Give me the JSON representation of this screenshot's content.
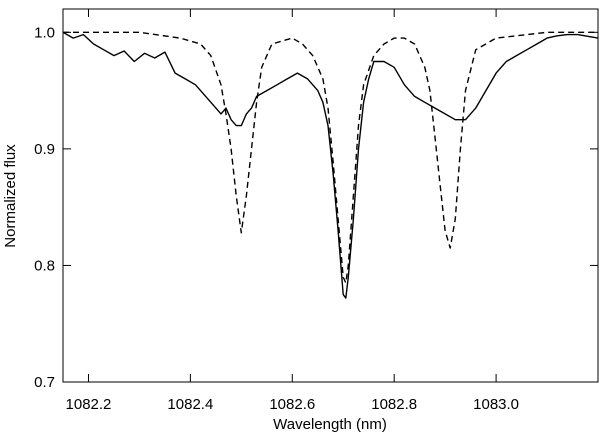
{
  "chart_data": {
    "type": "line",
    "xlabel": "Wavelength (nm)",
    "ylabel": "Normalized flux",
    "xlim": [
      1082.15,
      1083.2
    ],
    "ylim": [
      0.7,
      1.02
    ],
    "x_ticks": [
      1082.2,
      1082.4,
      1082.6,
      1082.8,
      1083.0
    ],
    "x_tick_labels": [
      "1082.2",
      "1082.4",
      "1082.6",
      "1082.8",
      "1083.0"
    ],
    "y_ticks": [
      0.7,
      0.8,
      0.9,
      1.0
    ],
    "y_tick_labels": [
      "0.7",
      "0.8",
      "0.9",
      "1.0"
    ],
    "grid": false,
    "legend": "none",
    "series": [
      {
        "style": "solid",
        "color": "#000000",
        "x": [
          1082.15,
          1082.17,
          1082.19,
          1082.21,
          1082.23,
          1082.25,
          1082.27,
          1082.29,
          1082.31,
          1082.33,
          1082.35,
          1082.37,
          1082.39,
          1082.41,
          1082.43,
          1082.45,
          1082.46,
          1082.47,
          1082.48,
          1082.49,
          1082.5,
          1082.51,
          1082.52,
          1082.53,
          1082.55,
          1082.57,
          1082.59,
          1082.61,
          1082.63,
          1082.65,
          1082.66,
          1082.67,
          1082.68,
          1082.69,
          1082.7,
          1082.705,
          1082.71,
          1082.72,
          1082.73,
          1082.74,
          1082.75,
          1082.76,
          1082.78,
          1082.8,
          1082.82,
          1082.84,
          1082.86,
          1082.88,
          1082.9,
          1082.92,
          1082.94,
          1082.96,
          1082.98,
          1083.0,
          1083.02,
          1083.04,
          1083.06,
          1083.08,
          1083.1,
          1083.12,
          1083.14,
          1083.16,
          1083.2
        ],
        "y": [
          1.0,
          0.995,
          0.998,
          0.99,
          0.985,
          0.98,
          0.984,
          0.975,
          0.982,
          0.978,
          0.983,
          0.965,
          0.96,
          0.955,
          0.945,
          0.935,
          0.93,
          0.935,
          0.925,
          0.92,
          0.92,
          0.93,
          0.935,
          0.945,
          0.95,
          0.955,
          0.96,
          0.965,
          0.96,
          0.95,
          0.94,
          0.92,
          0.88,
          0.83,
          0.775,
          0.772,
          0.79,
          0.84,
          0.9,
          0.94,
          0.96,
          0.975,
          0.975,
          0.97,
          0.955,
          0.945,
          0.94,
          0.935,
          0.93,
          0.925,
          0.925,
          0.935,
          0.95,
          0.965,
          0.975,
          0.98,
          0.985,
          0.99,
          0.995,
          0.997,
          0.998,
          0.998,
          0.995
        ]
      },
      {
        "style": "dashed",
        "color": "#000000",
        "x": [
          1082.15,
          1082.3,
          1082.38,
          1082.42,
          1082.44,
          1082.46,
          1082.47,
          1082.48,
          1082.49,
          1082.5,
          1082.51,
          1082.52,
          1082.53,
          1082.54,
          1082.56,
          1082.6,
          1082.62,
          1082.64,
          1082.66,
          1082.67,
          1082.68,
          1082.69,
          1082.7,
          1082.705,
          1082.71,
          1082.72,
          1082.73,
          1082.74,
          1082.76,
          1082.78,
          1082.8,
          1082.82,
          1082.84,
          1082.86,
          1082.87,
          1082.88,
          1082.89,
          1082.9,
          1082.91,
          1082.92,
          1082.93,
          1082.94,
          1082.96,
          1083.0,
          1083.1,
          1083.2
        ],
        "y": [
          1.0,
          1.0,
          0.995,
          0.99,
          0.98,
          0.955,
          0.93,
          0.9,
          0.86,
          0.828,
          0.86,
          0.9,
          0.94,
          0.97,
          0.99,
          0.995,
          0.99,
          0.98,
          0.96,
          0.935,
          0.89,
          0.84,
          0.79,
          0.785,
          0.8,
          0.86,
          0.92,
          0.955,
          0.98,
          0.99,
          0.995,
          0.995,
          0.99,
          0.97,
          0.95,
          0.91,
          0.87,
          0.83,
          0.815,
          0.84,
          0.9,
          0.95,
          0.985,
          0.995,
          1.0,
          1.0
        ]
      }
    ]
  }
}
